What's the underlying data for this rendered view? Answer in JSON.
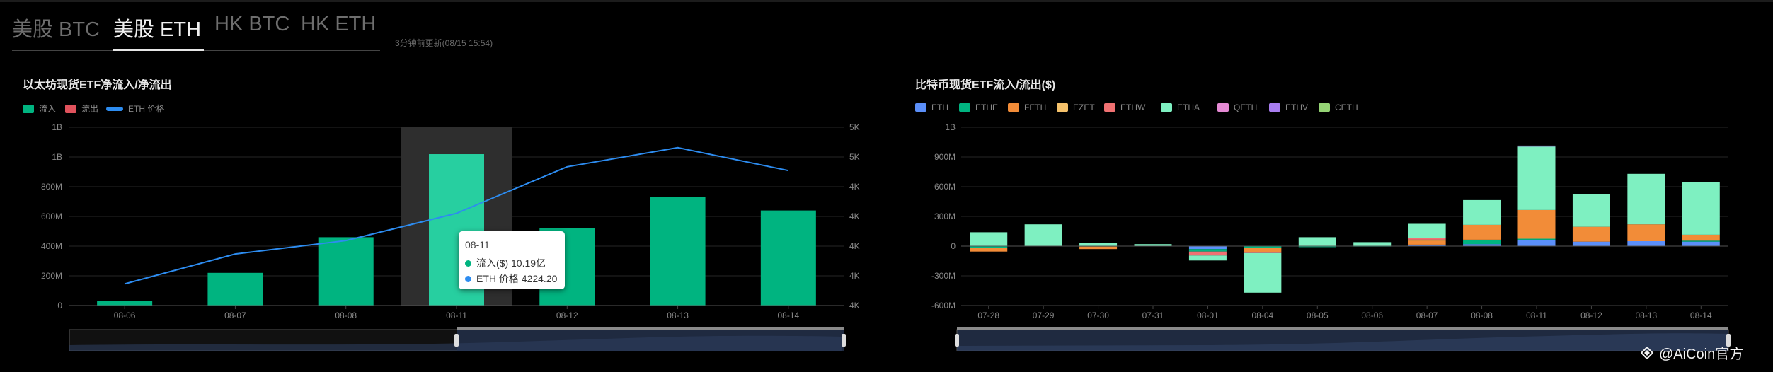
{
  "tabs": [
    {
      "label": "美股 BTC",
      "active": false
    },
    {
      "label": "美股 ETH",
      "active": true
    },
    {
      "label": "HK BTC",
      "active": false
    },
    {
      "label": "HK ETH",
      "active": false
    }
  ],
  "update_note": "3分钟前更新(08/15 15:54)",
  "watermark": "@AiCoin官方",
  "colors": {
    "inflow": "#00b480",
    "outflow": "#e0525c",
    "eth_price": "#2d8cf0",
    "ETH": "#5b8ff9",
    "ETHE": "#00b480",
    "FETH": "#f28c38",
    "EZET": "#f5c26b",
    "ETHW": "#f07172",
    "ETHA": "#7ef0c1",
    "QETH": "#e58ad4",
    "ETHV": "#a97ef0",
    "CETH": "#95d475"
  },
  "chart_data": [
    {
      "type": "bar",
      "title": "以太坊现货ETF净流入/净流出",
      "legend": [
        "流入",
        "流出",
        "ETH 价格"
      ],
      "categories": [
        "08-06",
        "08-07",
        "08-08",
        "08-11",
        "08-12",
        "08-13",
        "08-14"
      ],
      "series": [
        {
          "name": "流入",
          "values": [
            0.03,
            0.22,
            0.46,
            1.019,
            0.52,
            0.73,
            0.64
          ]
        },
        {
          "name": "ETH 价格",
          "type": "line",
          "axis": "right",
          "values": [
            3670,
            3905,
            4010,
            4224.2,
            4590,
            4740,
            4560
          ]
        }
      ],
      "y_ticks": [
        "0",
        "200M",
        "400M",
        "600M",
        "800M",
        "1B",
        "1B"
      ],
      "y2_ticks": [
        "4K",
        "4K",
        "4K",
        "4K",
        "4K",
        "5K",
        "5K"
      ],
      "highlight_category": "08-11",
      "tooltip": {
        "date": "08-11",
        "inflow": "流入($) 10.19亿",
        "price": "ETH 价格 4224.20"
      },
      "zoom_range": [
        0.5,
        1.0
      ]
    },
    {
      "type": "bar",
      "stacked": true,
      "title": "比特币现货ETF流入/流出($)",
      "legend": [
        "ETH",
        "ETHE",
        "FETH",
        "EZET",
        "ETHW",
        "ETHA",
        "QETH",
        "ETHV",
        "CETH"
      ],
      "categories": [
        "07-28",
        "07-29",
        "07-30",
        "07-31",
        "08-01",
        "08-04",
        "08-05",
        "08-06",
        "08-07",
        "08-08",
        "08-11",
        "08-12",
        "08-13",
        "08-14"
      ],
      "series": [
        {
          "name": "ETH",
          "values": [
            0,
            0,
            0,
            0,
            -30,
            0,
            0,
            0,
            15,
            20,
            65,
            45,
            50,
            45
          ]
        },
        {
          "name": "ETHE",
          "values": [
            -15,
            0,
            -5,
            0,
            -25,
            -20,
            -10,
            -5,
            0,
            45,
            10,
            0,
            0,
            10
          ]
        },
        {
          "name": "FETH",
          "values": [
            -40,
            0,
            -25,
            0,
            0,
            -40,
            0,
            0,
            40,
            150,
            290,
            150,
            170,
            60
          ]
        },
        {
          "name": "EZET",
          "values": [
            0,
            0,
            0,
            0,
            0,
            0,
            0,
            0,
            10,
            0,
            0,
            0,
            0,
            0
          ]
        },
        {
          "name": "ETHW",
          "values": [
            0,
            0,
            0,
            0,
            -40,
            -10,
            0,
            0,
            20,
            0,
            0,
            0,
            0,
            0
          ]
        },
        {
          "name": "ETHA",
          "values": [
            140,
            220,
            30,
            20,
            -50,
            -400,
            90,
            40,
            140,
            250,
            640,
            330,
            510,
            530
          ]
        },
        {
          "name": "QETH",
          "values": [
            0,
            0,
            0,
            0,
            0,
            0,
            0,
            0,
            0,
            0,
            0,
            0,
            0,
            0
          ]
        },
        {
          "name": "ETHV",
          "values": [
            0,
            0,
            0,
            0,
            0,
            0,
            0,
            0,
            0,
            0,
            10,
            0,
            0,
            0
          ]
        },
        {
          "name": "CETH",
          "values": [
            0,
            0,
            0,
            0,
            0,
            0,
            0,
            0,
            0,
            0,
            0,
            0,
            0,
            0
          ]
        }
      ],
      "y_ticks": [
        "-600M",
        "-300M",
        "0",
        "300M",
        "600M",
        "900M",
        "1B"
      ],
      "ylim": [
        -600,
        1200
      ],
      "zoom_range": [
        0.0,
        1.0
      ]
    }
  ]
}
